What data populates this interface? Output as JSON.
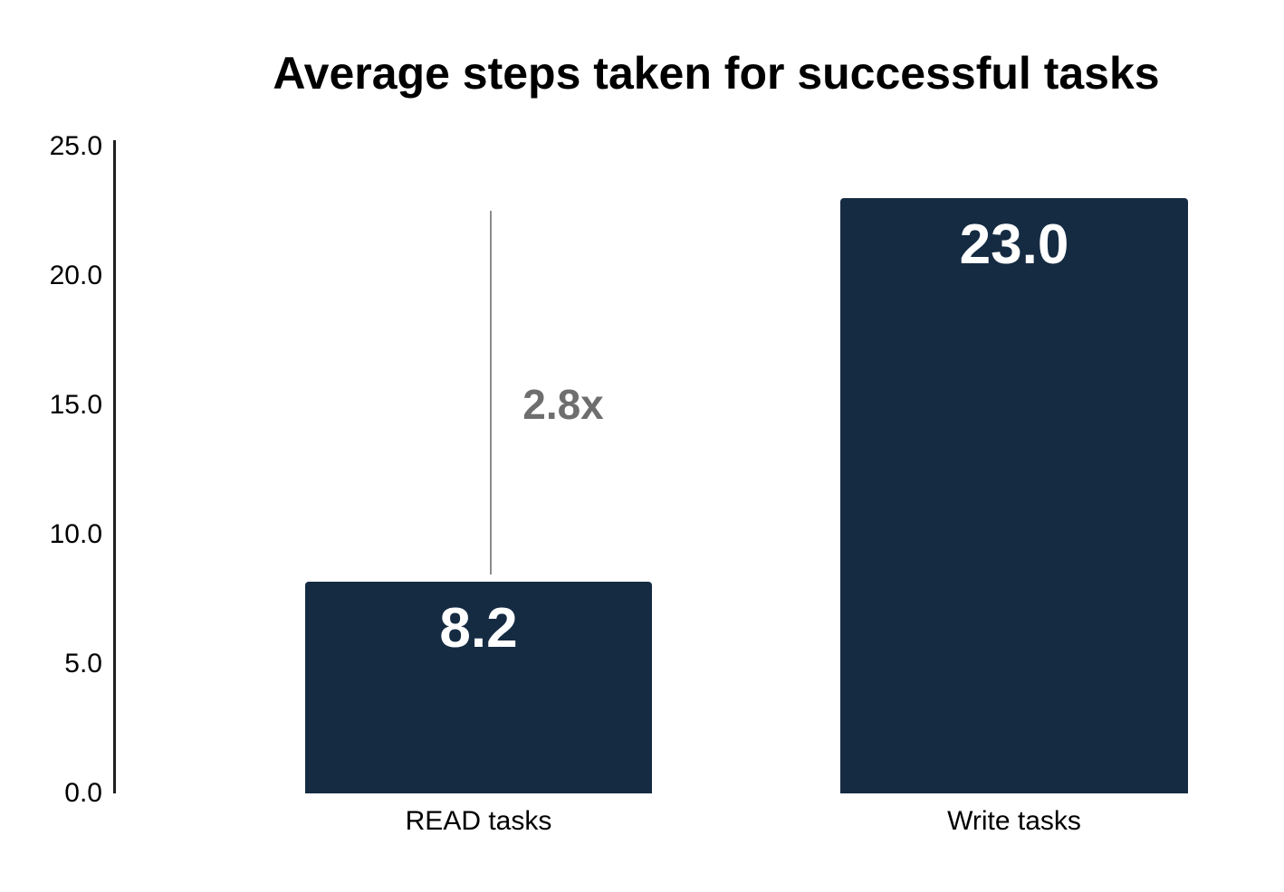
{
  "chart_data": {
    "type": "bar",
    "title": "Average steps taken for successful tasks",
    "xlabel": "",
    "ylabel": "",
    "categories": [
      "READ tasks",
      "Write tasks"
    ],
    "values": [
      8.2,
      23.0
    ],
    "value_labels": [
      "8.2",
      "23.0"
    ],
    "ylim": [
      0,
      25
    ],
    "yticks": [
      {
        "label": "25.0",
        "value": 25.0
      },
      {
        "label": "20.0",
        "value": 20.0
      },
      {
        "label": "15.0",
        "value": 15.0
      },
      {
        "label": "10.0",
        "value": 10.0
      },
      {
        "label": "5.0",
        "value": 5.0
      },
      {
        "label": "0.0",
        "value": 0.0
      }
    ],
    "grid": false,
    "legend": null,
    "annotation": {
      "text": "2.8x"
    },
    "colors": {
      "background": "#FFFFFF",
      "bar": "#152B42",
      "value_label": "#FFFFFF",
      "title": "#000000",
      "tick_label": "#000000",
      "axis_line": "#1F1F1F",
      "annotation_text": "#6E6E6E",
      "annotation_line": "#8C8C8C"
    }
  }
}
